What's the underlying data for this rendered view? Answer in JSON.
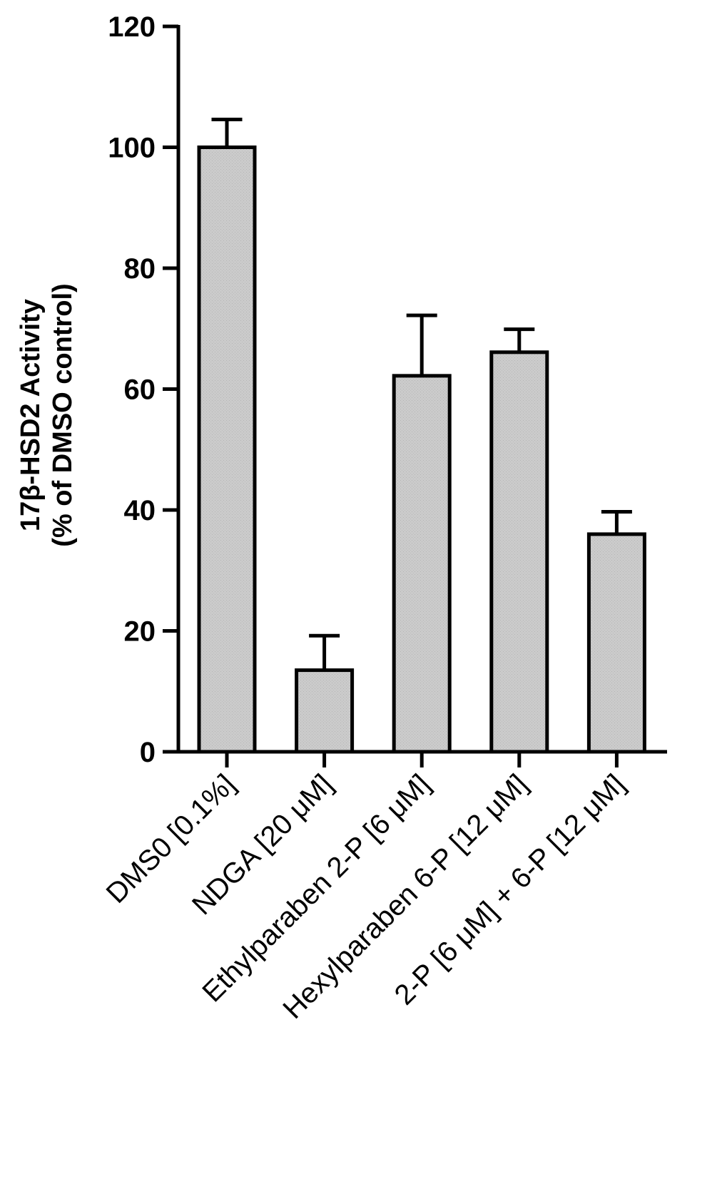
{
  "chart_data": {
    "type": "bar",
    "title": "",
    "xlabel": "",
    "ylabel_lines": [
      "17β-HSD2 Activity",
      "(% of DMSO control)"
    ],
    "ylim": [
      0,
      120
    ],
    "yticks": [
      "0",
      "20",
      "40",
      "60",
      "80",
      "100",
      "120"
    ],
    "categories": [
      "DMS0 [0.1%]",
      "NDGA [20 μM]",
      "Ethylparaben 2-P [6 μM]",
      "Hexylparaben 6-P [12 μM]",
      "2-P [6 μM] + 6-P [12 μM]"
    ],
    "values": [
      100,
      13.5,
      62.2,
      66.1,
      36.0
    ],
    "errors": [
      4.6,
      5.7,
      10.0,
      3.8,
      3.7
    ],
    "bar_color": "#c8c8c8",
    "edge_color": "#000000",
    "grid": false,
    "legend": "none"
  }
}
